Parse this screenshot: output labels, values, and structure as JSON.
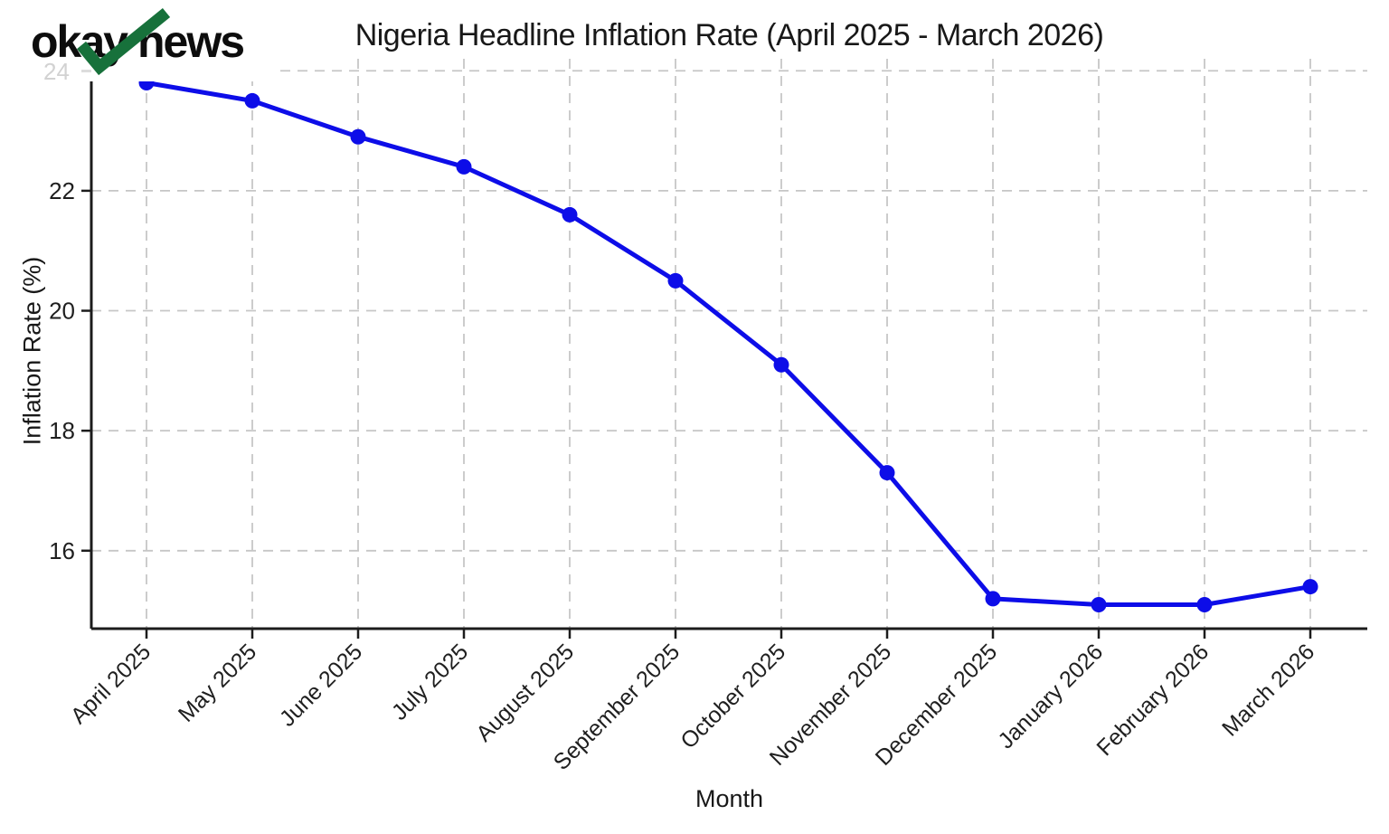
{
  "branding": {
    "logo_primary": "okay",
    "logo_secondary": "news",
    "check_color": "#17713b"
  },
  "chart_data": {
    "type": "line",
    "title": "Nigeria Headline Inflation Rate (April 2025 - March 2026)",
    "xlabel": "Month",
    "ylabel": "Inflation Rate (%)",
    "categories": [
      "April 2025",
      "May 2025",
      "June 2025",
      "July 2025",
      "August 2025",
      "September 2025",
      "October 2025",
      "November 2025",
      "December 2025",
      "January 2026",
      "February 2026",
      "March 2026"
    ],
    "series": [
      {
        "name": "Headline Inflation Rate (%)",
        "values": [
          23.8,
          23.5,
          22.9,
          22.4,
          21.6,
          20.5,
          19.1,
          17.3,
          15.2,
          15.1,
          15.1,
          15.4
        ]
      }
    ],
    "y_ticks": [
      16,
      18,
      20,
      22,
      24
    ],
    "faint_top_tick": "24",
    "ylim": [
      14.7,
      24.2
    ],
    "grid": true,
    "grid_style": "dashed",
    "legend": "none",
    "line_color": "#0d0de8",
    "grid_color": "#c6c6c6",
    "axis_color": "#1c1c1c",
    "faint_tick_color": "#d2d2d2"
  }
}
